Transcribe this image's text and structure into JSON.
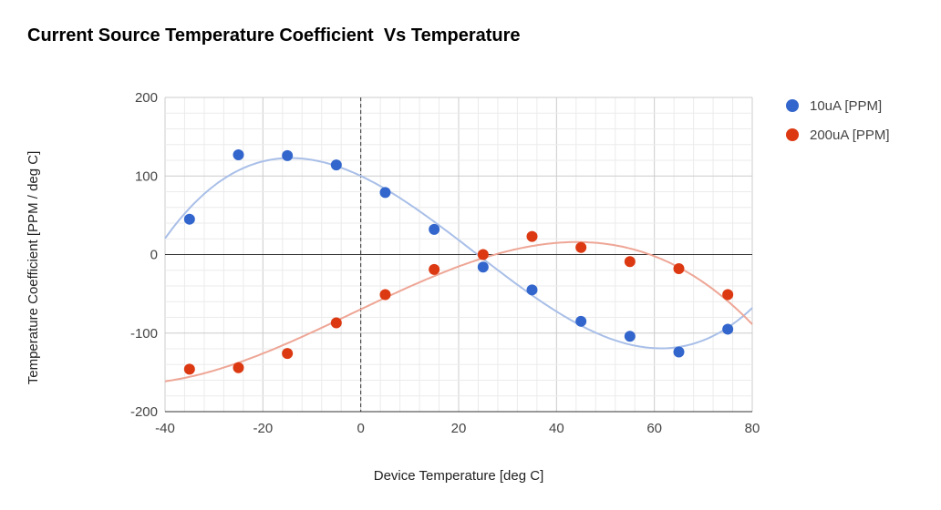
{
  "chart_data": {
    "type": "scatter",
    "title": "Current Source Temperature Coefficient  Vs Temperature",
    "xlabel": "Device Temperature [deg C]",
    "ylabel": "Temperature Coefficient [PPM / deg C]",
    "xlim": [
      -40,
      80
    ],
    "ylim": [
      -200,
      200
    ],
    "x_ticks": [
      -40,
      -20,
      0,
      20,
      40,
      60,
      80
    ],
    "y_ticks": [
      -200,
      -100,
      0,
      100,
      200
    ],
    "grid": true,
    "trendlines": true,
    "legend_position": "right",
    "series": [
      {
        "name": "10uA [PPM]",
        "color": "#3366cc",
        "trend_color": "#a9bfe8",
        "x": [
          -35,
          -25,
          -15,
          -5,
          5,
          15,
          25,
          35,
          45,
          55,
          65,
          75
        ],
        "y": [
          45,
          127,
          126,
          114,
          79,
          32,
          -16,
          -45,
          -85,
          -104,
          -124,
          -95
        ]
      },
      {
        "name": "200uA [PPM]",
        "color": "#dc3912",
        "trend_color": "#eea696",
        "x": [
          -35,
          -25,
          -15,
          -5,
          5,
          15,
          25,
          35,
          45,
          55,
          65,
          75
        ],
        "y": [
          -146,
          -144,
          -126,
          -87,
          -51,
          -19,
          0,
          23,
          9,
          -9,
          -18,
          -51
        ]
      }
    ]
  }
}
